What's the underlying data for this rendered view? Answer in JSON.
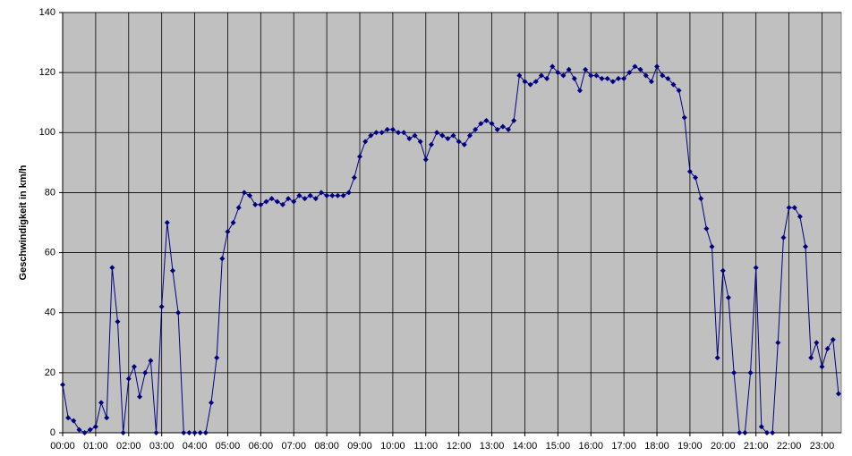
{
  "chart_data": {
    "type": "line",
    "y_label": "Geschwindigkeit in km/h",
    "x": [
      0,
      10,
      20,
      30,
      40,
      50,
      60,
      70,
      80,
      90,
      100,
      110,
      120,
      130,
      140,
      150,
      160,
      170,
      180,
      190,
      200,
      210,
      220,
      230,
      240,
      250,
      260,
      270,
      280,
      290,
      300,
      310,
      320,
      330,
      340,
      350,
      360,
      370,
      380,
      390,
      400,
      410,
      420,
      430,
      440,
      450,
      460,
      470,
      480,
      490,
      500,
      510,
      520,
      530,
      540,
      550,
      560,
      570,
      580,
      590,
      600,
      610,
      620,
      630,
      640,
      650,
      660,
      670,
      680,
      690,
      700,
      710,
      720,
      730,
      740,
      750,
      760,
      770,
      780,
      790,
      800,
      810,
      820,
      830,
      840,
      850,
      860,
      870,
      880,
      890,
      900,
      910,
      920,
      930,
      940,
      950,
      960,
      970,
      980,
      990,
      1000,
      1010,
      1020,
      1030,
      1040,
      1050,
      1060,
      1070,
      1080,
      1090,
      1100,
      1110,
      1120,
      1130,
      1140,
      1150,
      1160,
      1170,
      1180,
      1190,
      1200,
      1210,
      1220,
      1230,
      1240,
      1250,
      1260,
      1270,
      1280,
      1290,
      1300,
      1310,
      1320,
      1330,
      1340,
      1350,
      1360,
      1370,
      1380,
      1390,
      1400,
      1410
    ],
    "series": [
      {
        "name": "Geschwindigkeit",
        "color": "#000080",
        "values": [
          16,
          5,
          4,
          1,
          0,
          1,
          2,
          10,
          5,
          55,
          37,
          0,
          18,
          22,
          12,
          20,
          24,
          0,
          42,
          70,
          54,
          40,
          0,
          0,
          0,
          0,
          0,
          10,
          25,
          58,
          67,
          70,
          75,
          80,
          79,
          76,
          76,
          77,
          78,
          77,
          76,
          78,
          77,
          79,
          78,
          79,
          78,
          80,
          79,
          79,
          79,
          79,
          80,
          85,
          92,
          97,
          99,
          100,
          100,
          101,
          101,
          100,
          100,
          98,
          99,
          97,
          91,
          96,
          100,
          99,
          98,
          99,
          97,
          96,
          99,
          101,
          103,
          104,
          103,
          101,
          102,
          101,
          104,
          119,
          117,
          116,
          117,
          119,
          118,
          122,
          120,
          119,
          121,
          118,
          114,
          121,
          119,
          119,
          118,
          118,
          117,
          118,
          118,
          120,
          122,
          121,
          119,
          117,
          122,
          119,
          118,
          116,
          114,
          105,
          87,
          85,
          78,
          68,
          62,
          25,
          54,
          45,
          20,
          0,
          0,
          20,
          55,
          2,
          0,
          0,
          30,
          65,
          75,
          75,
          72,
          62,
          25,
          30,
          22,
          28,
          31,
          13
        ]
      }
    ],
    "xlim": [
      0,
      1415
    ],
    "xticks": [
      {
        "value": 0,
        "label": "00:00"
      },
      {
        "value": 60,
        "label": "01:00"
      },
      {
        "value": 120,
        "label": "02:00"
      },
      {
        "value": 180,
        "label": "03:00"
      },
      {
        "value": 240,
        "label": "04:00"
      },
      {
        "value": 300,
        "label": "05:00"
      },
      {
        "value": 360,
        "label": "06:00"
      },
      {
        "value": 420,
        "label": "07:00"
      },
      {
        "value": 480,
        "label": "08:00"
      },
      {
        "value": 540,
        "label": "09:00"
      },
      {
        "value": 600,
        "label": "10:00"
      },
      {
        "value": 660,
        "label": "11:00"
      },
      {
        "value": 720,
        "label": "12:00"
      },
      {
        "value": 780,
        "label": "13:00"
      },
      {
        "value": 840,
        "label": "14:00"
      },
      {
        "value": 900,
        "label": "15:00"
      },
      {
        "value": 960,
        "label": "16:00"
      },
      {
        "value": 1020,
        "label": "17:00"
      },
      {
        "value": 1080,
        "label": "18:00"
      },
      {
        "value": 1140,
        "label": "19:00"
      },
      {
        "value": 1200,
        "label": "20:00"
      },
      {
        "value": 1260,
        "label": "21:00"
      },
      {
        "value": 1320,
        "label": "22:00"
      },
      {
        "value": 1380,
        "label": "23:00"
      }
    ],
    "ylim": [
      0,
      140
    ],
    "yticks": [
      0,
      20,
      40,
      60,
      80,
      100,
      120,
      140
    ],
    "grid": true
  }
}
